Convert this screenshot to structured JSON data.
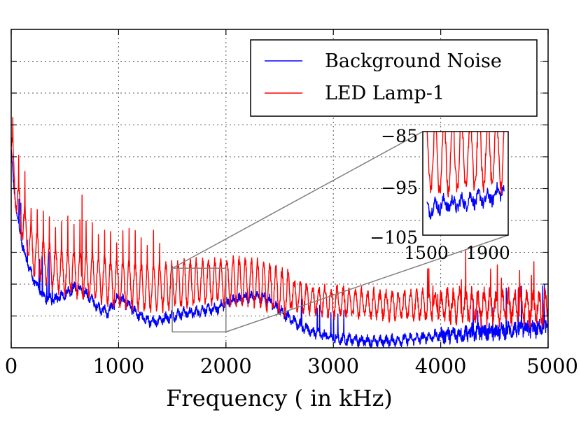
{
  "chart_data": {
    "type": "line",
    "title": "",
    "xlabel": "Frequency ( in kHz)",
    "ylabel": "",
    "xlim": [
      0,
      5000
    ],
    "ylim": [
      -112,
      -62
    ],
    "grid": true,
    "grid_style": "dotted",
    "legend_placement": "top-right",
    "x_ticks": [
      0,
      1000,
      2000,
      3000,
      4000,
      5000
    ],
    "x_tick_labels": [
      "0",
      "1000",
      "2000",
      "3000",
      "4000",
      "5000"
    ],
    "y_ticks": [
      -107,
      -102,
      -97,
      -92,
      -87,
      -82,
      -77,
      -72,
      -67
    ],
    "series": [
      {
        "name": "Background Noise",
        "color": "#0000ff",
        "envelope": {
          "x": [
            0,
            20,
            60,
            120,
            200,
            300,
            400,
            500,
            600,
            700,
            800,
            900,
            1000,
            1100,
            1200,
            1300,
            1400,
            1500,
            1600,
            1700,
            1800,
            1900,
            2000,
            2100,
            2200,
            2300,
            2400,
            2500,
            2600,
            2700,
            2800,
            2900,
            3000,
            3200,
            3400,
            3600,
            3800,
            4000,
            4200,
            4400,
            4600,
            4800,
            5000
          ],
          "y": [
            -81,
            -86,
            -92,
            -97,
            -101,
            -104,
            -104.5,
            -103.5,
            -102.5,
            -103.5,
            -105.5,
            -106.5,
            -104,
            -105.5,
            -107,
            -108,
            -107.5,
            -107,
            -106.5,
            -106.5,
            -106,
            -106,
            -105,
            -104.5,
            -104,
            -104,
            -104.5,
            -106,
            -107.5,
            -108.5,
            -109.5,
            -110,
            -110.5,
            -110.8,
            -111,
            -110.8,
            -110.5,
            -110,
            -109.8,
            -109.5,
            -109.3,
            -109,
            -109
          ]
        }
      },
      {
        "name": "LED Lamp-1",
        "color": "#ff0000",
        "envelope": {
          "x": [
            0,
            20,
            60,
            120,
            200,
            300,
            400,
            500,
            600,
            700,
            800,
            900,
            1000,
            1100,
            1200,
            1300,
            1400,
            1500,
            1600,
            1700,
            1800,
            1900,
            2000,
            2100,
            2200,
            2300,
            2400,
            2500,
            2600,
            2700,
            2800,
            2900,
            3000,
            3200,
            3400,
            3600,
            3800,
            4000,
            4200,
            4400,
            4600,
            4800,
            5000
          ],
          "y": [
            -80,
            -84,
            -89,
            -93,
            -97,
            -98.5,
            -99.5,
            -100,
            -100.3,
            -100.5,
            -101,
            -101.5,
            -101.8,
            -102,
            -102.3,
            -102.5,
            -102.5,
            -102.2,
            -102,
            -101.8,
            -101.7,
            -101.6,
            -101.5,
            -101.6,
            -101.7,
            -102,
            -102.5,
            -103,
            -103.6,
            -104,
            -104.4,
            -104.6,
            -104.8,
            -105,
            -105.2,
            -105.3,
            -105.3,
            -105.4,
            -105.4,
            -105.5,
            -105.5,
            -105.6,
            -105.6
          ]
        }
      }
    ],
    "inset": {
      "xlim": [
        1500,
        2000
      ],
      "ylim": [
        -105,
        -85
      ],
      "x_tick_labels": [
        "1500",
        "1900"
      ],
      "y_tick_labels": [
        "−85",
        "−95",
        "−105"
      ],
      "source_region": {
        "x": [
          1500,
          2000
        ],
        "y": [
          -109.5,
          -99.5
        ]
      }
    }
  }
}
